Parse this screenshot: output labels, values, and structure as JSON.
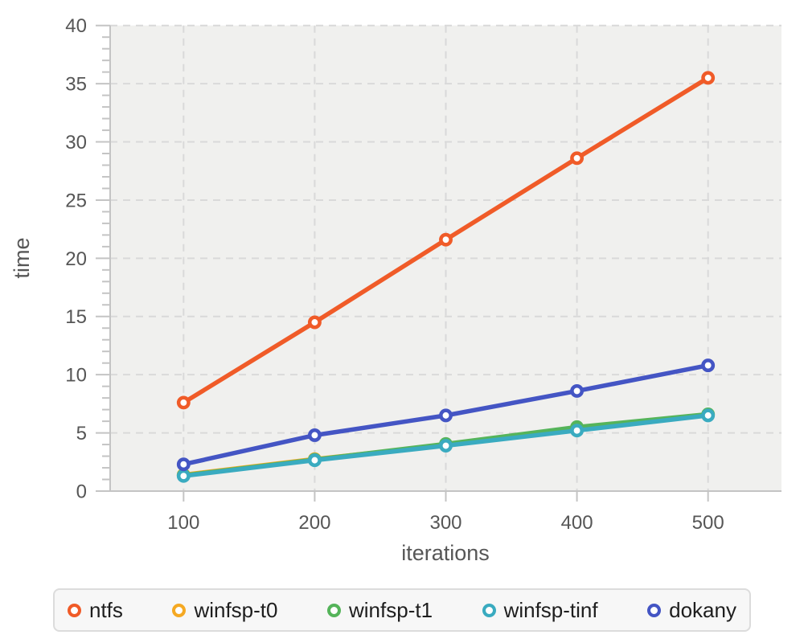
{
  "chart_data": {
    "type": "line",
    "x": [
      100,
      200,
      300,
      400,
      500
    ],
    "series": [
      {
        "name": "ntfs",
        "color": "#f05b28",
        "values": [
          7.6,
          14.5,
          21.6,
          28.6,
          35.5
        ]
      },
      {
        "name": "winfsp-t0",
        "color": "#f5a923",
        "values": [
          1.4,
          2.75,
          3.95,
          5.3,
          6.55
        ]
      },
      {
        "name": "winfsp-t1",
        "color": "#55b45a",
        "values": [
          1.35,
          2.7,
          4.05,
          5.5,
          6.6
        ]
      },
      {
        "name": "winfsp-tinf",
        "color": "#3aabc0",
        "values": [
          1.3,
          2.65,
          3.9,
          5.2,
          6.5
        ]
      },
      {
        "name": "dokany",
        "color": "#4455c4",
        "values": [
          2.3,
          4.8,
          6.5,
          8.6,
          10.8
        ]
      }
    ],
    "title": "",
    "xlabel": "iterations",
    "ylabel": "time",
    "xlim": [
      44,
      556
    ],
    "ylim": [
      0,
      40
    ],
    "x_ticks": [
      100,
      200,
      300,
      400,
      500
    ],
    "y_major_ticks": [
      0,
      5,
      10,
      15,
      20,
      25,
      30,
      35,
      40
    ],
    "y_minor_step": 1,
    "grid": "dashed",
    "legend_position": "bottom"
  },
  "style_colors": {
    "panel_background": "#f0f0ee",
    "gridline": "#d9d9d9",
    "axis": "#c4c4c4",
    "tick_label": "#565656",
    "axis_title": "#333333",
    "legend_background": "#f7f7f7",
    "legend_border": "#dcdcdc",
    "legend_text": "#1e1e1e"
  }
}
